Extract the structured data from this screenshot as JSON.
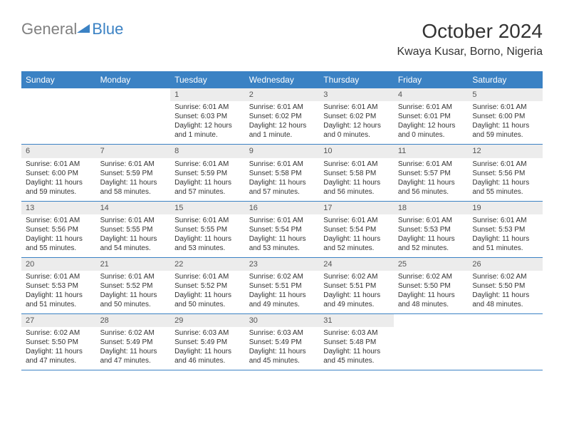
{
  "logo": {
    "text_gray": "General",
    "text_blue": "Blue"
  },
  "title": "October 2024",
  "location": "Kwaya Kusar, Borno, Nigeria",
  "colors": {
    "header_bg": "#3b82c4",
    "header_text": "#ffffff",
    "daynum_bg": "#ececec",
    "border": "#3b82c4",
    "logo_gray": "#808080",
    "logo_blue": "#3b82c4"
  },
  "day_headers": [
    "Sunday",
    "Monday",
    "Tuesday",
    "Wednesday",
    "Thursday",
    "Friday",
    "Saturday"
  ],
  "weeks": [
    [
      {
        "empty": true
      },
      {
        "empty": true
      },
      {
        "num": "1",
        "sunrise": "Sunrise: 6:01 AM",
        "sunset": "Sunset: 6:03 PM",
        "daylight": "Daylight: 12 hours and 1 minute."
      },
      {
        "num": "2",
        "sunrise": "Sunrise: 6:01 AM",
        "sunset": "Sunset: 6:02 PM",
        "daylight": "Daylight: 12 hours and 1 minute."
      },
      {
        "num": "3",
        "sunrise": "Sunrise: 6:01 AM",
        "sunset": "Sunset: 6:02 PM",
        "daylight": "Daylight: 12 hours and 0 minutes."
      },
      {
        "num": "4",
        "sunrise": "Sunrise: 6:01 AM",
        "sunset": "Sunset: 6:01 PM",
        "daylight": "Daylight: 12 hours and 0 minutes."
      },
      {
        "num": "5",
        "sunrise": "Sunrise: 6:01 AM",
        "sunset": "Sunset: 6:00 PM",
        "daylight": "Daylight: 11 hours and 59 minutes."
      }
    ],
    [
      {
        "num": "6",
        "sunrise": "Sunrise: 6:01 AM",
        "sunset": "Sunset: 6:00 PM",
        "daylight": "Daylight: 11 hours and 59 minutes."
      },
      {
        "num": "7",
        "sunrise": "Sunrise: 6:01 AM",
        "sunset": "Sunset: 5:59 PM",
        "daylight": "Daylight: 11 hours and 58 minutes."
      },
      {
        "num": "8",
        "sunrise": "Sunrise: 6:01 AM",
        "sunset": "Sunset: 5:59 PM",
        "daylight": "Daylight: 11 hours and 57 minutes."
      },
      {
        "num": "9",
        "sunrise": "Sunrise: 6:01 AM",
        "sunset": "Sunset: 5:58 PM",
        "daylight": "Daylight: 11 hours and 57 minutes."
      },
      {
        "num": "10",
        "sunrise": "Sunrise: 6:01 AM",
        "sunset": "Sunset: 5:58 PM",
        "daylight": "Daylight: 11 hours and 56 minutes."
      },
      {
        "num": "11",
        "sunrise": "Sunrise: 6:01 AM",
        "sunset": "Sunset: 5:57 PM",
        "daylight": "Daylight: 11 hours and 56 minutes."
      },
      {
        "num": "12",
        "sunrise": "Sunrise: 6:01 AM",
        "sunset": "Sunset: 5:56 PM",
        "daylight": "Daylight: 11 hours and 55 minutes."
      }
    ],
    [
      {
        "num": "13",
        "sunrise": "Sunrise: 6:01 AM",
        "sunset": "Sunset: 5:56 PM",
        "daylight": "Daylight: 11 hours and 55 minutes."
      },
      {
        "num": "14",
        "sunrise": "Sunrise: 6:01 AM",
        "sunset": "Sunset: 5:55 PM",
        "daylight": "Daylight: 11 hours and 54 minutes."
      },
      {
        "num": "15",
        "sunrise": "Sunrise: 6:01 AM",
        "sunset": "Sunset: 5:55 PM",
        "daylight": "Daylight: 11 hours and 53 minutes."
      },
      {
        "num": "16",
        "sunrise": "Sunrise: 6:01 AM",
        "sunset": "Sunset: 5:54 PM",
        "daylight": "Daylight: 11 hours and 53 minutes."
      },
      {
        "num": "17",
        "sunrise": "Sunrise: 6:01 AM",
        "sunset": "Sunset: 5:54 PM",
        "daylight": "Daylight: 11 hours and 52 minutes."
      },
      {
        "num": "18",
        "sunrise": "Sunrise: 6:01 AM",
        "sunset": "Sunset: 5:53 PM",
        "daylight": "Daylight: 11 hours and 52 minutes."
      },
      {
        "num": "19",
        "sunrise": "Sunrise: 6:01 AM",
        "sunset": "Sunset: 5:53 PM",
        "daylight": "Daylight: 11 hours and 51 minutes."
      }
    ],
    [
      {
        "num": "20",
        "sunrise": "Sunrise: 6:01 AM",
        "sunset": "Sunset: 5:53 PM",
        "daylight": "Daylight: 11 hours and 51 minutes."
      },
      {
        "num": "21",
        "sunrise": "Sunrise: 6:01 AM",
        "sunset": "Sunset: 5:52 PM",
        "daylight": "Daylight: 11 hours and 50 minutes."
      },
      {
        "num": "22",
        "sunrise": "Sunrise: 6:01 AM",
        "sunset": "Sunset: 5:52 PM",
        "daylight": "Daylight: 11 hours and 50 minutes."
      },
      {
        "num": "23",
        "sunrise": "Sunrise: 6:02 AM",
        "sunset": "Sunset: 5:51 PM",
        "daylight": "Daylight: 11 hours and 49 minutes."
      },
      {
        "num": "24",
        "sunrise": "Sunrise: 6:02 AM",
        "sunset": "Sunset: 5:51 PM",
        "daylight": "Daylight: 11 hours and 49 minutes."
      },
      {
        "num": "25",
        "sunrise": "Sunrise: 6:02 AM",
        "sunset": "Sunset: 5:50 PM",
        "daylight": "Daylight: 11 hours and 48 minutes."
      },
      {
        "num": "26",
        "sunrise": "Sunrise: 6:02 AM",
        "sunset": "Sunset: 5:50 PM",
        "daylight": "Daylight: 11 hours and 48 minutes."
      }
    ],
    [
      {
        "num": "27",
        "sunrise": "Sunrise: 6:02 AM",
        "sunset": "Sunset: 5:50 PM",
        "daylight": "Daylight: 11 hours and 47 minutes."
      },
      {
        "num": "28",
        "sunrise": "Sunrise: 6:02 AM",
        "sunset": "Sunset: 5:49 PM",
        "daylight": "Daylight: 11 hours and 47 minutes."
      },
      {
        "num": "29",
        "sunrise": "Sunrise: 6:03 AM",
        "sunset": "Sunset: 5:49 PM",
        "daylight": "Daylight: 11 hours and 46 minutes."
      },
      {
        "num": "30",
        "sunrise": "Sunrise: 6:03 AM",
        "sunset": "Sunset: 5:49 PM",
        "daylight": "Daylight: 11 hours and 45 minutes."
      },
      {
        "num": "31",
        "sunrise": "Sunrise: 6:03 AM",
        "sunset": "Sunset: 5:48 PM",
        "daylight": "Daylight: 11 hours and 45 minutes."
      },
      {
        "empty": true
      },
      {
        "empty": true
      }
    ]
  ]
}
